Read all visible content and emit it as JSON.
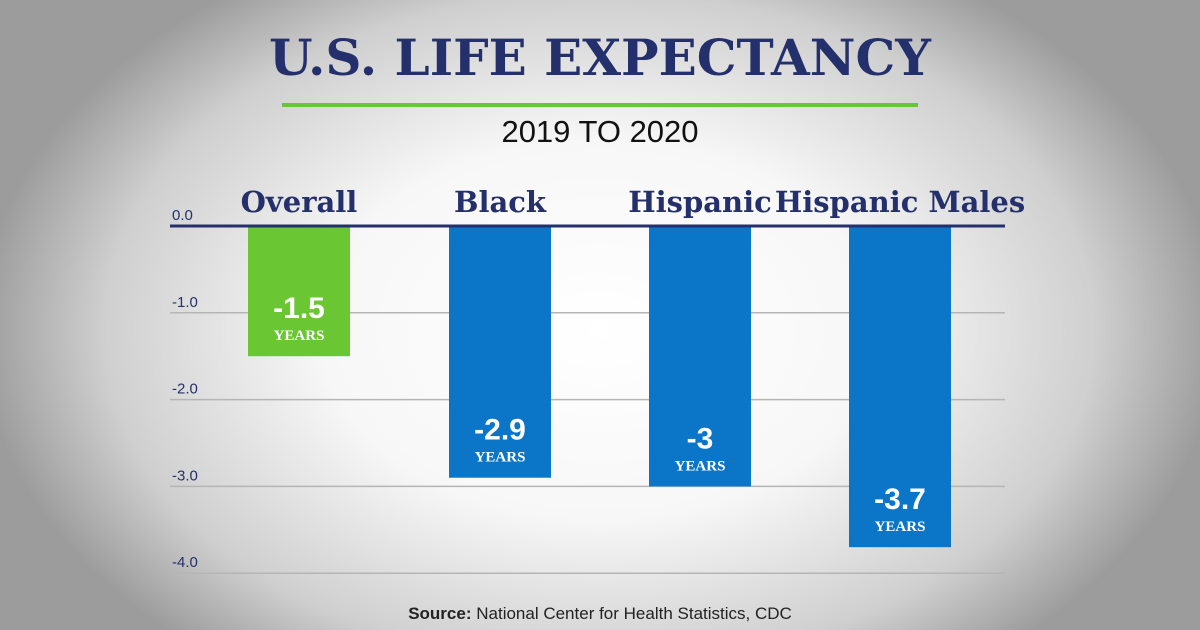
{
  "chart_data": {
    "type": "bar",
    "title": "U.S. LIFE EXPECTANCY",
    "subtitle": "2019 TO 2020",
    "categories": [
      "Overall",
      "Black",
      "Hispanic",
      "Hispanic Males"
    ],
    "values": [
      -1.5,
      -2.9,
      -3,
      -3.7
    ],
    "data_labels": [
      "-1.5",
      "-2.9",
      "-3",
      "-3.7"
    ],
    "unit_label": "YEARS",
    "yticks": [
      "0.0",
      "-1.0",
      "-2.0",
      "-3.0",
      "-4.0"
    ],
    "ytick_values": [
      0,
      -1,
      -2,
      -3,
      -4
    ],
    "ylim": [
      -4,
      0
    ],
    "grid": true,
    "colors": [
      "#6ac632",
      "#0b76c8",
      "#0b76c8",
      "#0b76c8"
    ],
    "title_color": "#24306b",
    "source_label": "Source:",
    "source_text": "National Center for Health Statistics, CDC"
  }
}
